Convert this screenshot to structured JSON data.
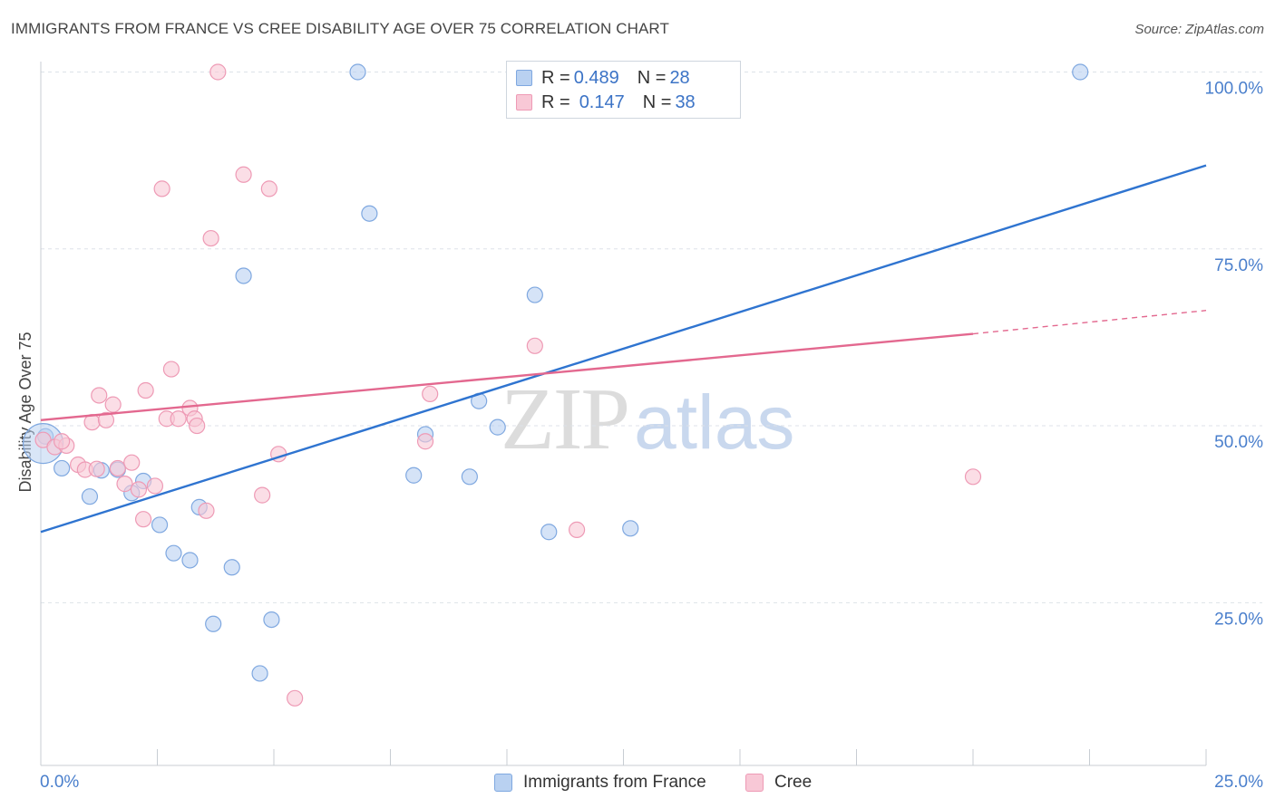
{
  "header": {
    "title": "IMMIGRANTS FROM FRANCE VS CREE DISABILITY AGE OVER 75 CORRELATION CHART",
    "source": "Source: ZipAtlas.com"
  },
  "watermark": {
    "zip": "ZIP",
    "atlas": "atlas"
  },
  "legend_top": {
    "rows": [
      {
        "r_label": "R = ",
        "r_value": "0.489",
        "n_label": "N = ",
        "n_value": "28"
      },
      {
        "r_label": "R = ",
        "r_value": "0.147",
        "n_label": "N = ",
        "n_value": "38"
      }
    ]
  },
  "colors": {
    "blue_fill": "#b9d1f1",
    "blue_stroke": "#7fa8e0",
    "blue_line": "#2f74d0",
    "pink_fill": "#f8c8d6",
    "pink_stroke": "#ee9ab5",
    "pink_line": "#e3688f",
    "grid": "#dde2e8",
    "tick_text": "#4a7fcc"
  },
  "chart_data": {
    "type": "scatter",
    "title": "IMMIGRANTS FROM FRANCE VS CREE DISABILITY AGE OVER 75 CORRELATION CHART",
    "xlabel": "",
    "ylabel": "Disability Age Over 75",
    "xlim": [
      0,
      25
    ],
    "ylim": [
      2,
      100
    ],
    "x_ticks": [
      "0.0%",
      "25.0%"
    ],
    "y_ticks": [
      {
        "value": 25,
        "label": "25.0%"
      },
      {
        "value": 50,
        "label": "50.0%"
      },
      {
        "value": 75,
        "label": "75.0%"
      },
      {
        "value": 100,
        "label": "100.0%"
      }
    ],
    "grid": true,
    "legend_position": "bottom",
    "series": [
      {
        "name": "Immigrants from France",
        "color": "#b9d1f1",
        "points": [
          [
            0.1,
            48.5
          ],
          [
            0.45,
            44.0
          ],
          [
            1.3,
            43.7
          ],
          [
            1.05,
            40.0
          ],
          [
            1.65,
            43.8
          ],
          [
            1.95,
            40.5
          ],
          [
            2.2,
            42.2
          ],
          [
            2.55,
            36.0
          ],
          [
            2.85,
            32.0
          ],
          [
            3.2,
            31.0
          ],
          [
            3.4,
            38.5
          ],
          [
            3.7,
            22.0
          ],
          [
            4.1,
            30.0
          ],
          [
            4.35,
            71.2
          ],
          [
            4.7,
            15.0
          ],
          [
            4.95,
            22.6
          ],
          [
            6.8,
            100.0
          ],
          [
            7.05,
            80.0
          ],
          [
            8.0,
            43.0
          ],
          [
            8.25,
            48.8
          ],
          [
            9.2,
            42.8
          ],
          [
            9.4,
            53.5
          ],
          [
            9.8,
            49.8
          ],
          [
            10.6,
            68.5
          ],
          [
            10.9,
            35.0
          ],
          [
            12.65,
            35.5
          ],
          [
            22.3,
            100.0
          ],
          [
            0.05,
            47.5
          ]
        ]
      },
      {
        "name": "Cree",
        "color": "#f8c8d6",
        "points": [
          [
            0.05,
            48.0
          ],
          [
            0.3,
            47.0
          ],
          [
            0.55,
            47.2
          ],
          [
            0.8,
            44.5
          ],
          [
            0.95,
            43.8
          ],
          [
            1.1,
            50.5
          ],
          [
            1.25,
            54.3
          ],
          [
            1.4,
            50.8
          ],
          [
            1.55,
            53.0
          ],
          [
            1.65,
            44.0
          ],
          [
            1.8,
            41.8
          ],
          [
            1.95,
            44.8
          ],
          [
            2.2,
            36.8
          ],
          [
            2.25,
            55.0
          ],
          [
            2.45,
            41.5
          ],
          [
            2.6,
            83.5
          ],
          [
            2.7,
            51.0
          ],
          [
            2.8,
            58.0
          ],
          [
            2.95,
            51.0
          ],
          [
            3.2,
            52.5
          ],
          [
            3.3,
            51.0
          ],
          [
            3.35,
            50.0
          ],
          [
            3.55,
            38.0
          ],
          [
            3.65,
            76.5
          ],
          [
            3.8,
            100.0
          ],
          [
            4.35,
            85.5
          ],
          [
            4.75,
            40.2
          ],
          [
            4.9,
            83.5
          ],
          [
            5.1,
            46.0
          ],
          [
            5.45,
            11.5
          ],
          [
            8.25,
            47.8
          ],
          [
            8.35,
            54.5
          ],
          [
            10.6,
            61.3
          ],
          [
            11.5,
            35.3
          ],
          [
            20.0,
            42.8
          ],
          [
            0.45,
            47.8
          ],
          [
            1.2,
            43.9
          ],
          [
            2.1,
            41.0
          ]
        ]
      }
    ],
    "trend_lines": [
      {
        "series": "Immigrants from France",
        "from": [
          0,
          35.0
        ],
        "to": [
          25,
          86.8
        ],
        "dashed_from": null
      },
      {
        "series": "Cree",
        "from": [
          0,
          50.8
        ],
        "to": [
          20,
          63.0
        ],
        "dashed_to": [
          25,
          66.3
        ]
      }
    ]
  },
  "legend_bottom": {
    "items": [
      {
        "label": "Immigrants from France"
      },
      {
        "label": "Cree"
      }
    ]
  }
}
